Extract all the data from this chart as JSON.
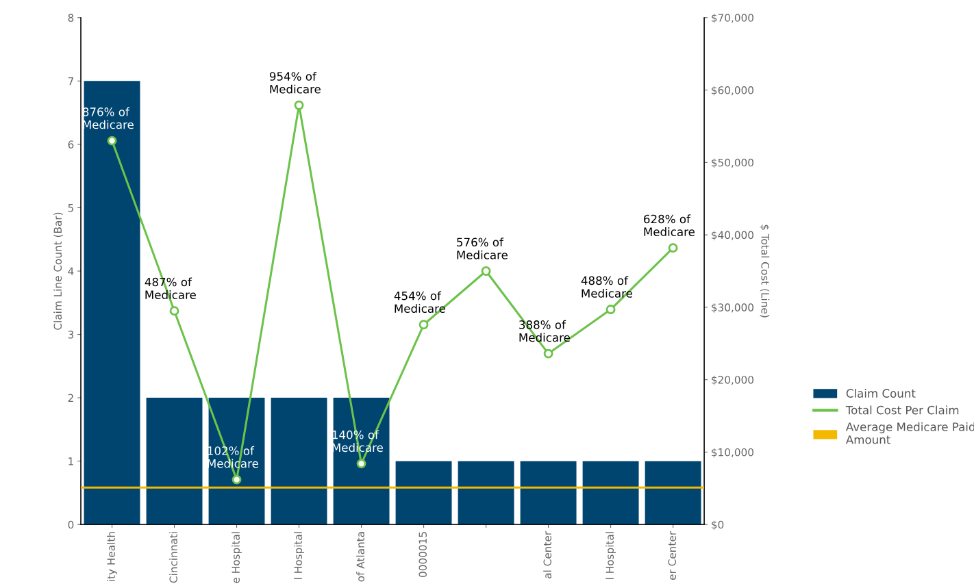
{
  "chart_data": {
    "type": "bar",
    "categories": [
      "ity Health",
      "Cincinnati",
      "e Hospital",
      "l Hospital",
      "of Atlanta",
      "0000015",
      null,
      "al Center",
      "l Hospital",
      "er Center"
    ],
    "ylabel": "Claim Line Count (Bar)",
    "y2label": "$ Total Cost (Line)",
    "ylim": [
      0,
      8
    ],
    "yticks": [
      0,
      1,
      2,
      3,
      4,
      5,
      6,
      7,
      8
    ],
    "y2lim": [
      0,
      70000
    ],
    "y2ticks": [
      {
        "value": 0,
        "label": "$0"
      },
      {
        "value": 10000,
        "label": "$10,000"
      },
      {
        "value": 20000,
        "label": "$20,000"
      },
      {
        "value": 30000,
        "label": "$30,000"
      },
      {
        "value": 40000,
        "label": "$40,000"
      },
      {
        "value": 50000,
        "label": "$50,000"
      },
      {
        "value": 60000,
        "label": "$60,000"
      },
      {
        "value": 70000,
        "label": "$70,000"
      }
    ],
    "series": [
      {
        "name": "Claim Count",
        "type": "bar",
        "color": "#004470",
        "values": [
          7,
          2,
          2,
          2,
          2,
          1,
          1,
          1,
          1,
          1
        ]
      },
      {
        "name": "Total Cost Per Claim",
        "type": "line",
        "axis": "y2",
        "color": "#6cc24a",
        "marker": "circle",
        "values": [
          53000,
          29500,
          6200,
          57900,
          8400,
          27600,
          35000,
          23600,
          29700,
          38200
        ]
      }
    ],
    "annotations": [
      "876% of\nMedicare",
      "487% of\nMedicare",
      "102% of\nMedicare",
      "954% of\nMedicare",
      "140% of\nMedicare",
      "454% of\nMedicare",
      "576% of\nMedicare",
      "388% of\nMedicare",
      "488% of\nMedicare",
      "628% of\nMedicare"
    ],
    "ref_lines": [
      {
        "axis": "y2",
        "value": 5100,
        "label": "Average Medicare Paid Amount",
        "color": "#f5b800"
      }
    ],
    "legend": "right",
    "grid": false
  }
}
